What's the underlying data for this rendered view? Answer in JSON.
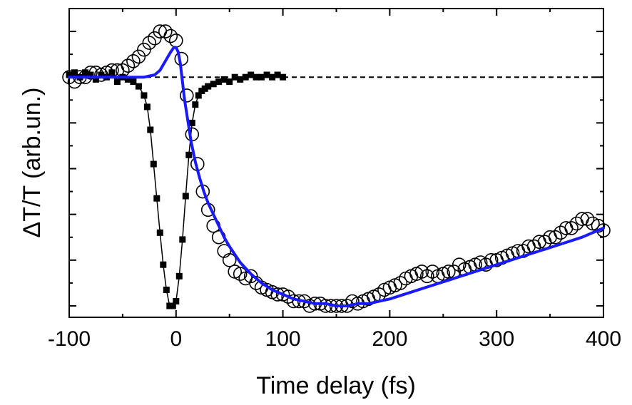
{
  "chart_data": {
    "type": "scatter",
    "xlabel": "Time delay (fs)",
    "ylabel": "ΔT/T (arb.un.)",
    "xlim": [
      -100,
      400
    ],
    "ylim": [
      -1.05,
      0.3
    ],
    "x_ticks": [
      "-100",
      "0",
      "100",
      "200",
      "300",
      "400"
    ],
    "y_tick_labels_shown": false,
    "grid": false,
    "legend": "none",
    "reference_line": {
      "y": 0,
      "style": "dashed",
      "color": "#000000"
    },
    "series": [
      {
        "marker": "filled-square",
        "color": "#000000",
        "connected": true,
        "x": [
          -100,
          -95,
          -90,
          -85,
          -80,
          -75,
          -70,
          -65,
          -60,
          -55,
          -50,
          -45,
          -40,
          -35,
          -30,
          -27,
          -24,
          -21,
          -18,
          -15,
          -12,
          -9,
          -6,
          -3,
          0,
          3,
          6,
          9,
          12,
          15,
          18,
          21,
          24,
          27,
          30,
          35,
          40,
          45,
          50,
          55,
          60,
          65,
          70,
          75,
          80,
          85,
          90,
          95,
          100
        ],
        "y": [
          0.01,
          0.02,
          0.0,
          0.02,
          0.01,
          -0.01,
          0.01,
          0.0,
          0.02,
          -0.02,
          0.0,
          -0.01,
          -0.02,
          -0.04,
          -0.08,
          -0.13,
          -0.23,
          -0.38,
          -0.53,
          -0.68,
          -0.82,
          -0.93,
          -1.0,
          -1.0,
          -0.98,
          -0.87,
          -0.71,
          -0.52,
          -0.34,
          -0.2,
          -0.12,
          -0.08,
          -0.06,
          -0.05,
          -0.04,
          -0.03,
          -0.02,
          -0.01,
          -0.02,
          0.0,
          -0.01,
          0.0,
          0.01,
          0.0,
          0.0,
          0.01,
          0.0,
          0.01,
          0.0
        ]
      },
      {
        "marker": "open-circle",
        "color": "#000000",
        "connected": false,
        "x": [
          -100,
          -95,
          -90,
          -85,
          -80,
          -75,
          -70,
          -65,
          -60,
          -55,
          -50,
          -45,
          -40,
          -35,
          -30,
          -25,
          -20,
          -15,
          -10,
          -5,
          0,
          5,
          10,
          15,
          20,
          25,
          30,
          35,
          40,
          45,
          50,
          55,
          60,
          65,
          70,
          75,
          80,
          85,
          90,
          95,
          100,
          105,
          110,
          115,
          120,
          125,
          130,
          135,
          140,
          145,
          150,
          155,
          160,
          165,
          170,
          175,
          180,
          185,
          190,
          195,
          200,
          205,
          210,
          215,
          220,
          225,
          230,
          235,
          240,
          245,
          250,
          255,
          260,
          265,
          270,
          275,
          280,
          285,
          290,
          295,
          300,
          305,
          310,
          315,
          320,
          325,
          330,
          335,
          340,
          345,
          350,
          355,
          360,
          365,
          370,
          375,
          380,
          385,
          390,
          395,
          400
        ],
        "y": [
          0.0,
          -0.02,
          0.0,
          0.0,
          0.02,
          0.02,
          0.01,
          0.02,
          0.03,
          0.03,
          0.03,
          0.05,
          0.07,
          0.09,
          0.12,
          0.15,
          0.17,
          0.2,
          0.2,
          0.18,
          0.16,
          0.08,
          -0.08,
          -0.25,
          -0.38,
          -0.5,
          -0.58,
          -0.65,
          -0.7,
          -0.76,
          -0.8,
          -0.85,
          -0.86,
          -0.88,
          -0.87,
          -0.9,
          -0.92,
          -0.93,
          -0.94,
          -0.95,
          -0.95,
          -0.96,
          -0.98,
          -0.98,
          -0.98,
          -1.0,
          -0.99,
          -0.99,
          -1.0,
          -1.0,
          -1.0,
          -1.0,
          -1.0,
          -0.98,
          -0.99,
          -0.98,
          -0.97,
          -0.96,
          -0.95,
          -0.93,
          -0.92,
          -0.91,
          -0.9,
          -0.88,
          -0.87,
          -0.86,
          -0.85,
          -0.87,
          -0.85,
          -0.87,
          -0.86,
          -0.85,
          -0.85,
          -0.82,
          -0.84,
          -0.83,
          -0.82,
          -0.81,
          -0.82,
          -0.8,
          -0.8,
          -0.79,
          -0.78,
          -0.77,
          -0.76,
          -0.76,
          -0.74,
          -0.74,
          -0.72,
          -0.72,
          -0.7,
          -0.7,
          -0.68,
          -0.66,
          -0.66,
          -0.64,
          -0.62,
          -0.62,
          -0.64,
          -0.65,
          -0.67
        ]
      },
      {
        "marker": "none",
        "color": "#1a1aff",
        "connected": true,
        "line_width": 4,
        "x": [
          -100,
          -60,
          -40,
          -30,
          -20,
          -15,
          -10,
          -5,
          -2,
          0,
          2,
          4,
          6,
          8,
          10,
          14,
          18,
          22,
          26,
          30,
          35,
          40,
          45,
          50,
          60,
          70,
          80,
          90,
          100,
          110,
          120,
          130,
          140,
          150,
          160,
          170,
          180,
          190,
          200,
          220,
          240,
          260,
          280,
          300,
          320,
          340,
          360,
          380,
          400
        ],
        "y": [
          0.0,
          0.0,
          0.0,
          0.0,
          0.01,
          0.03,
          0.07,
          0.11,
          0.13,
          0.13,
          0.11,
          0.06,
          -0.02,
          -0.1,
          -0.16,
          -0.28,
          -0.37,
          -0.44,
          -0.5,
          -0.55,
          -0.6,
          -0.65,
          -0.7,
          -0.74,
          -0.81,
          -0.86,
          -0.9,
          -0.93,
          -0.95,
          -0.97,
          -0.98,
          -0.99,
          -0.99,
          -1.0,
          -1.0,
          -0.99,
          -0.99,
          -0.98,
          -0.97,
          -0.94,
          -0.91,
          -0.88,
          -0.85,
          -0.82,
          -0.79,
          -0.76,
          -0.73,
          -0.7,
          -0.66
        ]
      }
    ]
  }
}
